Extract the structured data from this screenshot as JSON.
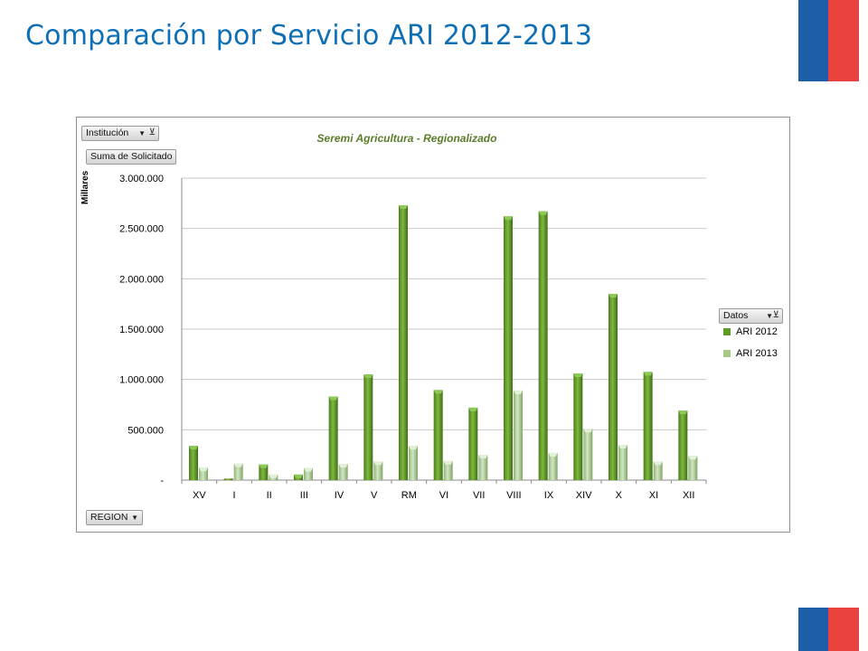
{
  "slide": {
    "title": "Comparación por Servicio ARI 2012-2013"
  },
  "colors": {
    "title": "#0f6fb5",
    "flag_blue": "#1c5fa8",
    "flag_red": "#e8413e",
    "series_2012": "#5e9a25",
    "series_2013": "#a8c98a"
  },
  "pivot": {
    "institucion": "Institución",
    "suma": "Suma de Solicitado",
    "datos": "Datos",
    "region": "REGION"
  },
  "chart_data": {
    "type": "bar",
    "title": "Seremi Agricultura - Regionalizado",
    "xlabel": "",
    "ylabel": "Millares",
    "categories": [
      "XV",
      "I",
      "II",
      "III",
      "IV",
      "V",
      "RM",
      "VI",
      "VII",
      "VIII",
      "IX",
      "XIV",
      "X",
      "XI",
      "XII"
    ],
    "series": [
      {
        "name": "ARI 2012",
        "values": [
          340000,
          15000,
          155000,
          55000,
          830000,
          1050000,
          2730000,
          895000,
          720000,
          2620000,
          2670000,
          1060000,
          1850000,
          1075000,
          690000
        ]
      },
      {
        "name": "ARI 2013",
        "values": [
          125000,
          165000,
          55000,
          120000,
          160000,
          185000,
          340000,
          190000,
          250000,
          890000,
          270000,
          510000,
          350000,
          185000,
          240000
        ]
      }
    ],
    "ylim": [
      0,
      3000000
    ],
    "yticks": [
      0,
      500000,
      1000000,
      1500000,
      2000000,
      2500000,
      3000000
    ],
    "ytick_labels": [
      "-",
      "500.000",
      "1.000.000",
      "1.500.000",
      "2.000.000",
      "2.500.000",
      "3.000.000"
    ],
    "grid": true,
    "legend": "right"
  }
}
